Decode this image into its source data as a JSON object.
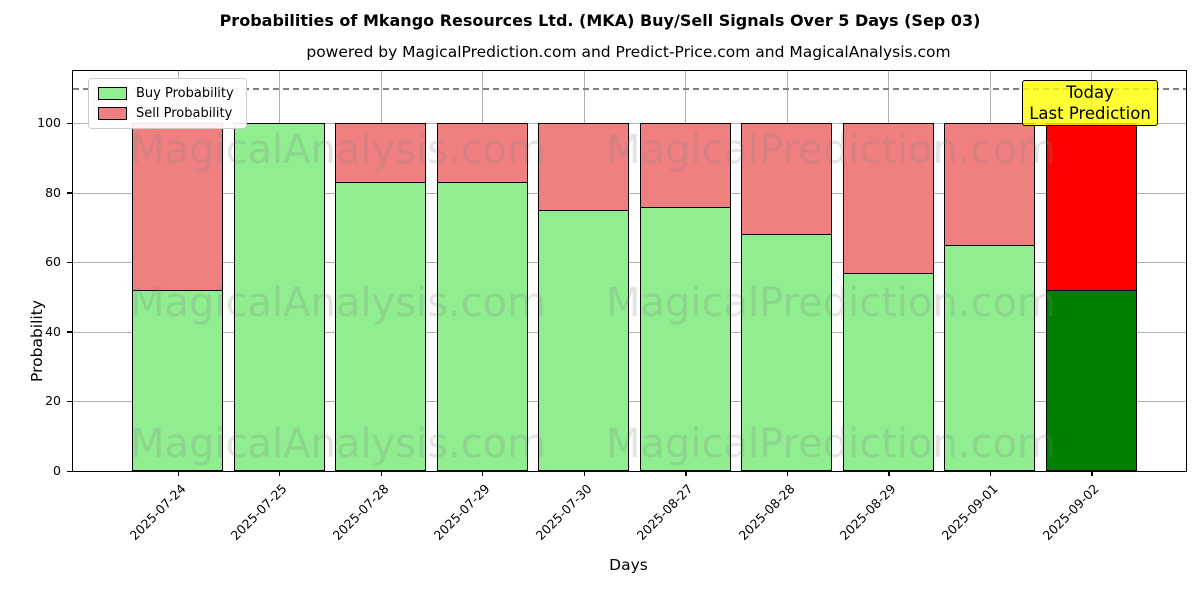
{
  "title": "Probabilities of Mkango Resources Ltd. (MKA) Buy/Sell Signals Over 5 Days (Sep 03)",
  "subtitle": "powered by MagicalPrediction.com and Predict-Price.com and MagicalAnalysis.com",
  "legend": {
    "buy": "Buy Probability",
    "sell": "Sell Probability"
  },
  "annotation": {
    "line1": "Today",
    "line2": "Last Prediction"
  },
  "watermarks": {
    "left": "MagicalAnalysis.com",
    "right": "MagicalPrediction.com"
  },
  "colors": {
    "buy": "#90EE90",
    "sell": "#F08080",
    "today_buy": "#008000",
    "today_sell": "#FF0000",
    "annotation_bg": "rgba(255,255,0,0.8)",
    "grid": "#b0b0b0",
    "dashed_line": "#808080",
    "watermark": "rgba(128,128,128,0.22)"
  },
  "chart_data": {
    "type": "bar",
    "stacked": true,
    "title": "Probabilities of Mkango Resources Ltd. (MKA) Buy/Sell Signals Over 5 Days (Sep 03)",
    "xlabel": "Days",
    "ylabel": "Probability",
    "categories": [
      "2025-07-24",
      "2025-07-25",
      "2025-07-28",
      "2025-07-29",
      "2025-07-30",
      "2025-08-27",
      "2025-08-28",
      "2025-08-29",
      "2025-09-01",
      "2025-09-02"
    ],
    "series": [
      {
        "name": "Buy Probability",
        "values": [
          52,
          100,
          83,
          83,
          75,
          76,
          68,
          57,
          65,
          52
        ]
      },
      {
        "name": "Sell Probability",
        "values": [
          48,
          0,
          17,
          17,
          25,
          24,
          32,
          43,
          35,
          48
        ]
      }
    ],
    "today_index": 9,
    "yticks": [
      0,
      20,
      40,
      60,
      80,
      100
    ],
    "ylim": [
      0,
      115
    ],
    "dashed_line_y": 110,
    "grid": true,
    "legend_position": "upper left"
  }
}
